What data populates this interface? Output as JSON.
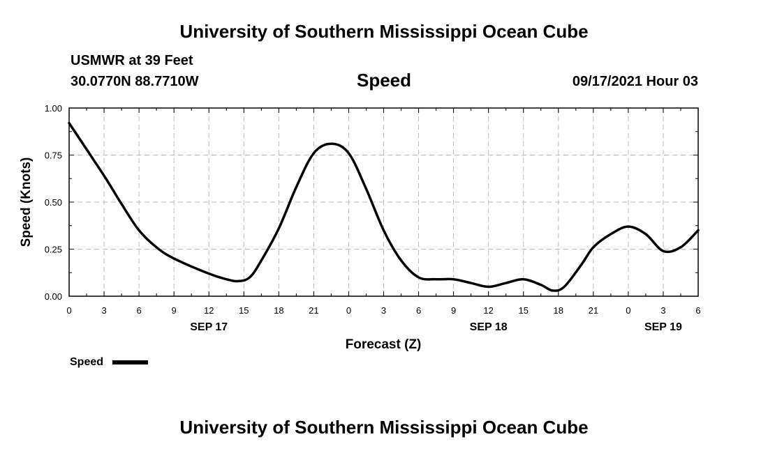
{
  "header": {
    "top_title": "University of Southern Mississippi Ocean Cube",
    "station": "USMWR at 39 Feet",
    "coords": "30.0770N  88.7710W",
    "chart_title": "Speed",
    "datetime": "09/17/2021 Hour 03",
    "bottom_title": "University of Southern Mississippi Ocean Cube"
  },
  "chart_data": {
    "type": "line",
    "title": "Speed",
    "xlabel": "Forecast (Z)",
    "ylabel": "Speed (Knots)",
    "xlim": [
      0,
      54
    ],
    "ylim": [
      0,
      1
    ],
    "x_ticks": [
      {
        "x": 0,
        "label": "0"
      },
      {
        "x": 3,
        "label": "3"
      },
      {
        "x": 6,
        "label": "6"
      },
      {
        "x": 9,
        "label": "9"
      },
      {
        "x": 12,
        "label": "12"
      },
      {
        "x": 15,
        "label": "15"
      },
      {
        "x": 18,
        "label": "18"
      },
      {
        "x": 21,
        "label": "21"
      },
      {
        "x": 24,
        "label": "0"
      },
      {
        "x": 27,
        "label": "3"
      },
      {
        "x": 30,
        "label": "6"
      },
      {
        "x": 33,
        "label": "9"
      },
      {
        "x": 36,
        "label": "12"
      },
      {
        "x": 39,
        "label": "15"
      },
      {
        "x": 42,
        "label": "18"
      },
      {
        "x": 45,
        "label": "21"
      },
      {
        "x": 48,
        "label": "0"
      },
      {
        "x": 51,
        "label": "3"
      },
      {
        "x": 54,
        "label": "6"
      }
    ],
    "y_ticks": [
      {
        "y": 0,
        "label": "0.00"
      },
      {
        "y": 0.25,
        "label": "0.25"
      },
      {
        "y": 0.5,
        "label": "0.50"
      },
      {
        "y": 0.75,
        "label": "0.75"
      },
      {
        "y": 1,
        "label": "1.00"
      }
    ],
    "date_labels": [
      {
        "x": 12,
        "label": "SEP 17"
      },
      {
        "x": 36,
        "label": "SEP 18"
      },
      {
        "x": 51,
        "label": "SEP 19"
      }
    ],
    "grid": true,
    "legend": {
      "label": "Speed",
      "position": "bottom-left"
    },
    "series": [
      {
        "name": "Speed",
        "color": "#000000",
        "x": [
          0,
          3,
          4.5,
          6,
          7.5,
          9,
          12,
          13.5,
          14.5,
          15.5,
          16.5,
          18,
          19.5,
          21,
          22.5,
          24,
          25.5,
          27,
          28.5,
          30,
          31.5,
          33,
          34.5,
          36,
          37.5,
          39,
          40.5,
          41.5,
          42.5,
          44,
          45,
          46.5,
          48,
          49.5,
          51,
          52.5,
          54
        ],
        "values": [
          0.92,
          0.64,
          0.49,
          0.35,
          0.26,
          0.2,
          0.12,
          0.09,
          0.08,
          0.1,
          0.19,
          0.36,
          0.58,
          0.76,
          0.81,
          0.76,
          0.57,
          0.35,
          0.19,
          0.1,
          0.09,
          0.09,
          0.07,
          0.05,
          0.07,
          0.09,
          0.06,
          0.03,
          0.05,
          0.17,
          0.26,
          0.33,
          0.37,
          0.33,
          0.24,
          0.26,
          0.35
        ]
      }
    ]
  }
}
